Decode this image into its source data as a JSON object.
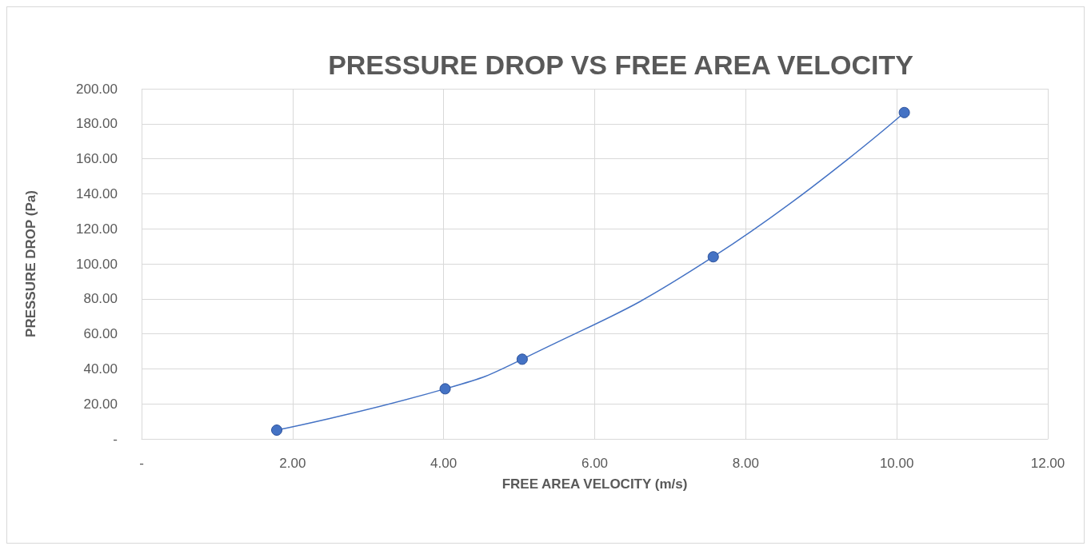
{
  "chart_data": {
    "type": "line",
    "title": "PRESSURE DROP VS FREE AREA VELOCITY",
    "xlabel": "FREE AREA VELOCITY (m/s)",
    "ylabel": "PRESSURE DROP (Pa)",
    "x": [
      1.79,
      4.02,
      5.04,
      7.57,
      10.1
    ],
    "series": [
      {
        "color": "#4472c4",
        "values": [
          5,
          28.6,
          45.5,
          104,
          186.4
        ]
      }
    ],
    "xlim": [
      0,
      12
    ],
    "xticks": [
      {
        "value": 0,
        "label": "-"
      },
      {
        "value": 2,
        "label": "2.00"
      },
      {
        "value": 4,
        "label": "4.00"
      },
      {
        "value": 6,
        "label": "6.00"
      },
      {
        "value": 8,
        "label": "8.00"
      },
      {
        "value": 10,
        "label": "10.00"
      },
      {
        "value": 12,
        "label": "12.00"
      }
    ],
    "ylim": [
      0,
      200
    ],
    "yticks": [
      {
        "value": 0,
        "label": "-"
      },
      {
        "value": 20,
        "label": "20.00"
      },
      {
        "value": 40,
        "label": "40.00"
      },
      {
        "value": 60,
        "label": "60.00"
      },
      {
        "value": 80,
        "label": "80.00"
      },
      {
        "value": 100,
        "label": "100.00"
      },
      {
        "value": 120,
        "label": "120.00"
      },
      {
        "value": 140,
        "label": "140.00"
      },
      {
        "value": 160,
        "label": "160.00"
      },
      {
        "value": 180,
        "label": "180.00"
      },
      {
        "value": 200,
        "label": "200.00"
      }
    ],
    "grid": true,
    "marker": "circle",
    "line_style": "solid"
  }
}
